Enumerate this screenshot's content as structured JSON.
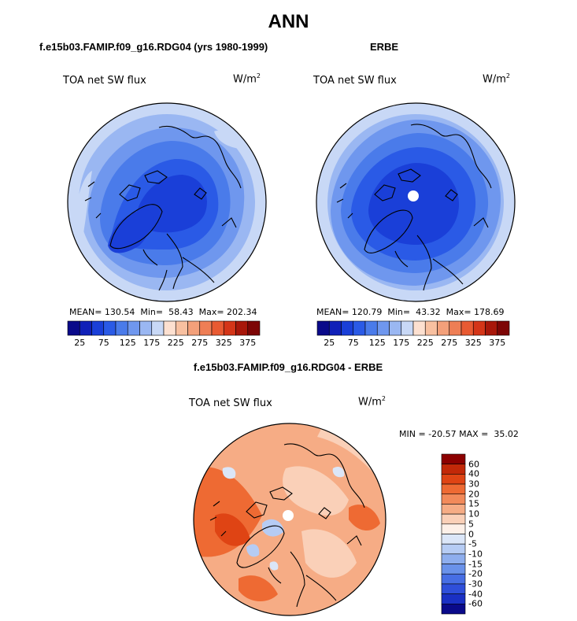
{
  "figure": {
    "title": "ANN",
    "diff_title": "f.e15b03.FAMIP.f09_g16.RDG04 - ERBE"
  },
  "panels": [
    {
      "id": "model",
      "title": "f.e15b03.FAMIP.f09_g16.RDG04 (yrs 1980-1999)",
      "variable": "TOA net SW flux",
      "units_base": "W/m",
      "units_sup": "2",
      "stats": "MEAN= 130.54  Min=  58.43  Max= 202.34"
    },
    {
      "id": "obs",
      "title": "ERBE",
      "variable": "TOA net SW flux",
      "units_base": "W/m",
      "units_sup": "2",
      "stats": "MEAN= 120.79  Min=  43.32  Max= 178.69"
    },
    {
      "id": "diff",
      "variable": "TOA net SW flux",
      "units_base": "W/m",
      "units_sup": "2",
      "stats": "MIN = -20.57 MAX =  35.02"
    }
  ],
  "colorbar_abs": {
    "colors": [
      "#0a0a8a",
      "#1020b8",
      "#1a3fd8",
      "#2a5ae6",
      "#4a7bea",
      "#6f97ee",
      "#9ab7f2",
      "#c8d8f6",
      "#fde0d0",
      "#f8c0a0",
      "#f3a07a",
      "#ee7e55",
      "#e85a32",
      "#d43518",
      "#a8170a",
      "#7d0606"
    ],
    "labels": [
      "25",
      "75",
      "125",
      "175",
      "225",
      "275",
      "325",
      "375"
    ]
  },
  "colorbar_diff": {
    "colors": [
      "#8c0000",
      "#c22808",
      "#df4414",
      "#ee6a33",
      "#f28a5a",
      "#f6ac85",
      "#fad0b8",
      "#fdf0e8",
      "#dbe6f8",
      "#b6ccf4",
      "#8eaeee",
      "#6a92ea",
      "#476ee4",
      "#2f4fda",
      "#1a30c4",
      "#0a0a8a"
    ],
    "labels": [
      "60",
      "40",
      "30",
      "20",
      "15",
      "10",
      "5",
      "0",
      "-5",
      "-10",
      "-15",
      "-20",
      "-30",
      "-40",
      "-60"
    ]
  }
}
